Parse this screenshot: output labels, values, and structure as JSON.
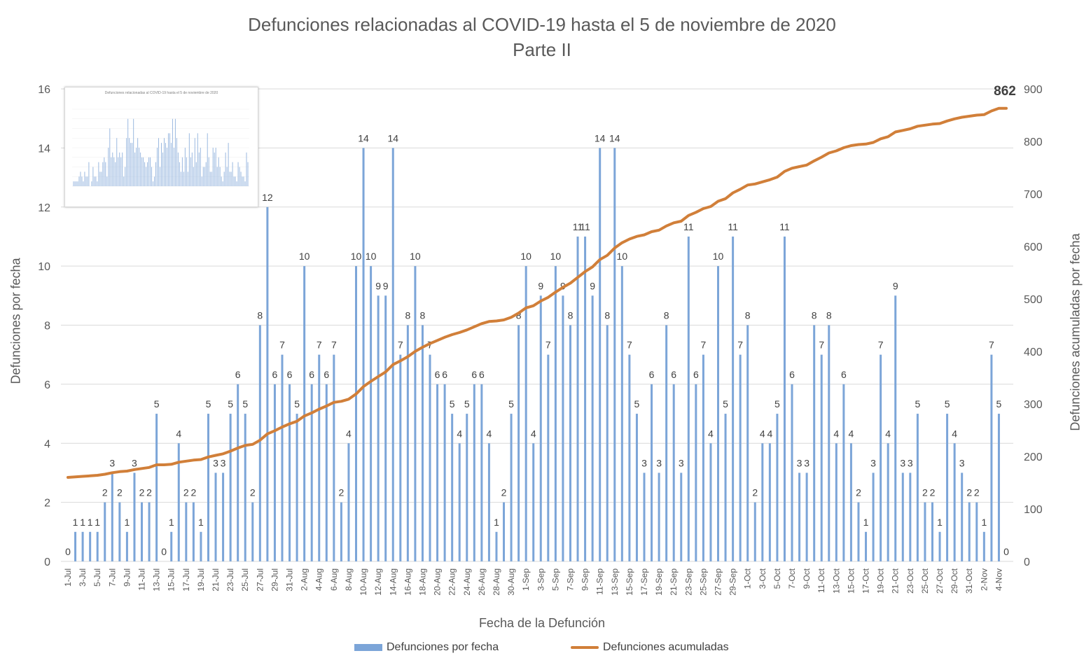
{
  "chart_data": {
    "type": "bar+line",
    "title": "Defunciones relacionadas al COVID-19 hasta el 5 de noviembre de 2020",
    "subtitle": "Parte II",
    "xlabel": "Fecha de la Defunción",
    "ylabel_left": "Defunciones por fecha",
    "ylabel_right": "Defunciones acumuladas por fecha",
    "ylim_left": [
      0,
      16
    ],
    "yticks_left": [
      0,
      2,
      4,
      6,
      8,
      10,
      12,
      14,
      16
    ],
    "ylim_right": [
      0,
      900
    ],
    "yticks_right": [
      0,
      100,
      200,
      300,
      400,
      500,
      600,
      700,
      800,
      900
    ],
    "grid": "horizontal",
    "legend_position": "bottom",
    "categories": [
      "1-Jul",
      "2-Jul",
      "3-Jul",
      "4-Jul",
      "5-Jul",
      "6-Jul",
      "7-Jul",
      "8-Jul",
      "9-Jul",
      "10-Jul",
      "11-Jul",
      "12-Jul",
      "13-Jul",
      "14-Jul",
      "15-Jul",
      "16-Jul",
      "17-Jul",
      "18-Jul",
      "19-Jul",
      "20-Jul",
      "21-Jul",
      "22-Jul",
      "23-Jul",
      "24-Jul",
      "25-Jul",
      "26-Jul",
      "27-Jul",
      "28-Jul",
      "29-Jul",
      "30-Jul",
      "31-Jul",
      "1-Aug",
      "2-Aug",
      "3-Aug",
      "4-Aug",
      "5-Aug",
      "6-Aug",
      "7-Aug",
      "8-Aug",
      "9-Aug",
      "10-Aug",
      "11-Aug",
      "12-Aug",
      "13-Aug",
      "14-Aug",
      "15-Aug",
      "16-Aug",
      "17-Aug",
      "18-Aug",
      "19-Aug",
      "20-Aug",
      "21-Aug",
      "22-Aug",
      "23-Aug",
      "24-Aug",
      "25-Aug",
      "26-Aug",
      "27-Aug",
      "28-Aug",
      "29-Aug",
      "30-Aug",
      "31-Aug",
      "1-Sep",
      "2-Sep",
      "3-Sep",
      "4-Sep",
      "5-Sep",
      "6-Sep",
      "7-Sep",
      "8-Sep",
      "9-Sep",
      "10-Sep",
      "11-Sep",
      "12-Sep",
      "13-Sep",
      "14-Sep",
      "15-Sep",
      "16-Sep",
      "17-Sep",
      "18-Sep",
      "19-Sep",
      "20-Sep",
      "21-Sep",
      "22-Sep",
      "23-Sep",
      "24-Sep",
      "25-Sep",
      "26-Sep",
      "27-Sep",
      "28-Sep",
      "29-Sep",
      "30-Sep",
      "1-Oct",
      "2-Oct",
      "3-Oct",
      "4-Oct",
      "5-Oct",
      "6-Oct",
      "7-Oct",
      "8-Oct",
      "9-Oct",
      "10-Oct",
      "11-Oct",
      "12-Oct",
      "13-Oct",
      "14-Oct",
      "15-Oct",
      "16-Oct",
      "17-Oct",
      "18-Oct",
      "19-Oct",
      "20-Oct",
      "21-Oct",
      "22-Oct",
      "23-Oct",
      "24-Oct",
      "25-Oct",
      "26-Oct",
      "27-Oct",
      "28-Oct",
      "29-Oct",
      "30-Oct",
      "31-Oct",
      "1-Nov",
      "2-Nov",
      "3-Nov",
      "4-Nov",
      "5-Nov"
    ],
    "series": [
      {
        "name": "Defunciones por fecha",
        "type": "bar",
        "axis": "left",
        "color": "#7ca5d8",
        "values": [
          0,
          1,
          1,
          1,
          1,
          2,
          3,
          2,
          1,
          3,
          2,
          2,
          5,
          0,
          1,
          4,
          2,
          2,
          1,
          5,
          3,
          3,
          5,
          6,
          5,
          2,
          8,
          12,
          6,
          7,
          6,
          5,
          10,
          6,
          7,
          6,
          7,
          2,
          4,
          10,
          14,
          10,
          9,
          9,
          14,
          7,
          8,
          10,
          8,
          7,
          6,
          6,
          5,
          4,
          5,
          6,
          6,
          4,
          1,
          2,
          5,
          8,
          10,
          4,
          9,
          7,
          10,
          9,
          8,
          11,
          11,
          9,
          14,
          8,
          14,
          10,
          7,
          5,
          3,
          6,
          3,
          8,
          6,
          3,
          11,
          6,
          7,
          4,
          10,
          5,
          11,
          7,
          8,
          2,
          4,
          4,
          5,
          11,
          6,
          3,
          3,
          8,
          7,
          8,
          4,
          6,
          4,
          2,
          1,
          3,
          7,
          4,
          9,
          3,
          3,
          5,
          2,
          2,
          1,
          5,
          4,
          3,
          2,
          2,
          1,
          7,
          5,
          0
        ]
      },
      {
        "name": "Defunciones acumuladas",
        "type": "line",
        "axis": "right",
        "color": "#d17f39"
      }
    ],
    "cumulative_start": 160,
    "final_label": "862"
  },
  "legend": {
    "bar_label": "Defunciones por fecha",
    "line_label": "Defunciones acumuladas"
  },
  "inset": {
    "title": "Defunciones relacionadas al COVID-19 hasta el 5 de noviembre de 2020"
  }
}
